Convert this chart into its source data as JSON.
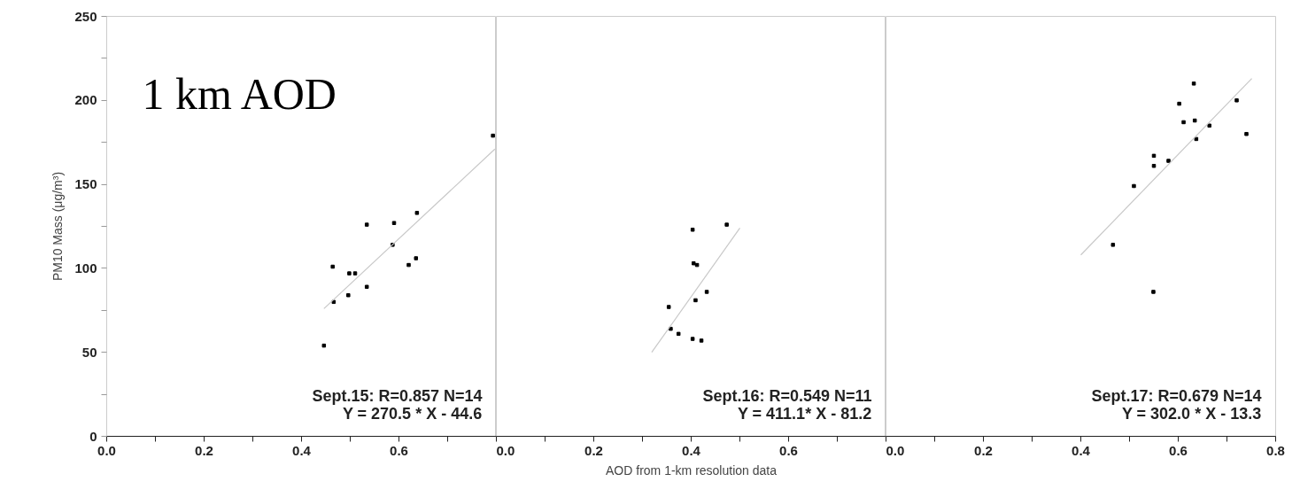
{
  "chart_data": [
    {
      "type": "scatter",
      "title": "1 km AOD",
      "ylabel": "PM10 Mass (μg/m³)",
      "xlim": [
        0,
        0.8
      ],
      "ylim": [
        0,
        250
      ],
      "xticks": [
        {
          "value": 0,
          "label": "0.0"
        },
        {
          "value": 0.1,
          "label": null
        },
        0.2,
        {
          "value": 0.3,
          "label": null
        },
        0.4,
        {
          "value": 0.5,
          "label": null
        },
        0.6,
        {
          "value": 0.7,
          "label": null
        },
        {
          "value": 0.8,
          "label": null
        }
      ],
      "yticks": [
        0,
        {
          "value": 25,
          "label": null
        },
        50,
        {
          "value": 75,
          "label": null
        },
        100,
        {
          "value": 125,
          "label": null
        },
        150,
        {
          "value": 175,
          "label": null
        },
        200,
        {
          "value": 225,
          "label": null
        },
        250
      ],
      "annotations": [
        "Sept.15: R=0.857 N=14",
        "Y = 270.5 * X - 44.6"
      ],
      "series": [
        {
          "color": "#000000",
          "marker": "square",
          "x": [
            0.446,
            0.466,
            0.464,
            0.496,
            0.498,
            0.51,
            0.534,
            0.534,
            0.59,
            0.587,
            0.62,
            0.635,
            0.637,
            0.793
          ],
          "values": [
            54,
            80,
            101,
            84,
            97,
            97,
            126,
            89,
            127,
            114,
            102,
            106,
            133,
            179
          ]
        },
        {
          "type": "line",
          "marker": "none",
          "color": "#c8c8c8",
          "x": [
            0.446,
            0.797
          ],
          "values": [
            76,
            171
          ]
        }
      ]
    },
    {
      "type": "scatter",
      "xlabel": "AOD from 1-km resolution data",
      "tick_labels": "x",
      "xlim": [
        0,
        0.8
      ],
      "ylim": [
        0,
        250
      ],
      "xticks": [
        {
          "value": 0,
          "label": "0.0"
        },
        {
          "value": 0.1,
          "label": null
        },
        0.2,
        {
          "value": 0.3,
          "label": null
        },
        0.4,
        {
          "value": 0.5,
          "label": null
        },
        0.6,
        {
          "value": 0.7,
          "label": null
        },
        {
          "value": 0.8,
          "label": null
        }
      ],
      "annotations": [
        "Sept.16: R=0.549 N=11",
        "Y = 411.1* X - 81.2"
      ],
      "series": [
        {
          "color": "#000000",
          "marker": "square",
          "x": [
            0.473,
            0.403,
            0.405,
            0.412,
            0.432,
            0.409,
            0.354,
            0.358,
            0.374,
            0.403,
            0.421
          ],
          "values": [
            126,
            123,
            103,
            102,
            86,
            81,
            77,
            64,
            61,
            58,
            57
          ]
        },
        {
          "type": "line",
          "marker": "none",
          "color": "#c8c8c8",
          "x": [
            0.319,
            0.5
          ],
          "values": [
            50,
            124
          ]
        }
      ]
    },
    {
      "type": "scatter",
      "tick_labels": "x",
      "xlim": [
        0,
        0.8
      ],
      "ylim": [
        0,
        250
      ],
      "xticks": [
        {
          "value": 0,
          "label": "0.0"
        },
        {
          "value": 0.1,
          "label": null
        },
        0.2,
        {
          "value": 0.3,
          "label": null
        },
        0.4,
        {
          "value": 0.5,
          "label": null
        },
        0.6,
        {
          "value": 0.7,
          "label": null
        },
        0.8
      ],
      "annotations": [
        "Sept.17: R=0.679 N=14",
        "Y = 302.0 * X - 13.3"
      ],
      "series": [
        {
          "color": "#000000",
          "marker": "square",
          "x": [
            0.632,
            0.602,
            0.72,
            0.611,
            0.634,
            0.664,
            0.74,
            0.637,
            0.55,
            0.55,
            0.58,
            0.509,
            0.466,
            0.549
          ],
          "values": [
            210,
            198,
            200,
            187,
            188,
            185,
            180,
            177,
            167,
            161,
            164,
            149,
            114,
            86
          ]
        },
        {
          "type": "line",
          "marker": "none",
          "color": "#c8c8c8",
          "x": [
            0.4,
            0.751
          ],
          "values": [
            108,
            213
          ]
        }
      ]
    }
  ]
}
